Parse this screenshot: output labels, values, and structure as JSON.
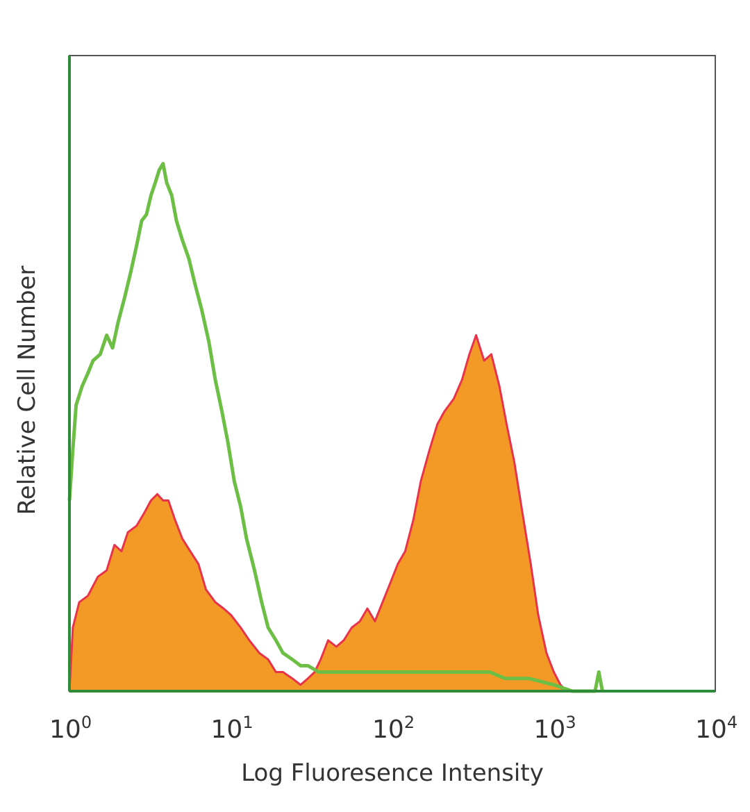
{
  "chart_data": {
    "type": "area",
    "title": "",
    "xlabel": "Log Fluoresence Intensity",
    "ylabel": "Relative Cell Number",
    "x_scale": "log",
    "xlim": [
      1,
      10000
    ],
    "ylim": [
      0,
      100
    ],
    "x_ticks": [
      {
        "base": "10",
        "exp": "0",
        "value": 1
      },
      {
        "base": "10",
        "exp": "1",
        "value": 10
      },
      {
        "base": "10",
        "exp": "2",
        "value": 100
      },
      {
        "base": "10",
        "exp": "3",
        "value": 1000
      },
      {
        "base": "10",
        "exp": "4",
        "value": 10000
      }
    ],
    "grid": false,
    "legend": "none",
    "series": [
      {
        "style": "filled",
        "color": "#f39a26",
        "edge_color": "#e8334a",
        "points": [
          [
            1.0,
            0
          ],
          [
            1.05,
            10
          ],
          [
            1.15,
            14
          ],
          [
            1.3,
            15
          ],
          [
            1.5,
            18
          ],
          [
            1.7,
            19
          ],
          [
            1.9,
            23
          ],
          [
            2.1,
            22
          ],
          [
            2.3,
            25
          ],
          [
            2.6,
            26
          ],
          [
            2.9,
            28
          ],
          [
            3.2,
            30
          ],
          [
            3.5,
            31
          ],
          [
            3.8,
            30
          ],
          [
            4.1,
            30
          ],
          [
            4.5,
            27
          ],
          [
            5.0,
            24
          ],
          [
            5.6,
            22
          ],
          [
            6.3,
            20
          ],
          [
            7.0,
            16
          ],
          [
            8.0,
            14
          ],
          [
            9.0,
            13
          ],
          [
            10.0,
            12
          ],
          [
            11.5,
            10
          ],
          [
            13.0,
            8
          ],
          [
            15.0,
            6
          ],
          [
            17.0,
            5
          ],
          [
            19.0,
            3
          ],
          [
            21.0,
            3
          ],
          [
            24.0,
            2
          ],
          [
            27.0,
            1
          ],
          [
            30.0,
            2
          ],
          [
            33.0,
            3
          ],
          [
            36.0,
            5
          ],
          [
            40.0,
            8
          ],
          [
            45.0,
            7
          ],
          [
            50.0,
            8
          ],
          [
            56.0,
            10
          ],
          [
            63.0,
            11
          ],
          [
            70.0,
            13
          ],
          [
            78.0,
            11
          ],
          [
            87.0,
            14
          ],
          [
            97.0,
            17
          ],
          [
            108.0,
            20
          ],
          [
            120.0,
            22
          ],
          [
            135.0,
            27
          ],
          [
            150.0,
            33
          ],
          [
            170.0,
            38
          ],
          [
            190.0,
            42
          ],
          [
            210.0,
            44
          ],
          [
            240.0,
            46
          ],
          [
            270.0,
            49
          ],
          [
            300.0,
            53
          ],
          [
            330.0,
            56
          ],
          [
            370.0,
            52
          ],
          [
            410.0,
            53
          ],
          [
            460.0,
            48
          ],
          [
            510.0,
            42
          ],
          [
            570.0,
            36
          ],
          [
            640.0,
            28
          ],
          [
            720.0,
            20
          ],
          [
            800.0,
            12
          ],
          [
            900.0,
            6
          ],
          [
            1000.0,
            3
          ],
          [
            1100.0,
            1
          ],
          [
            1200.0,
            0
          ]
        ]
      },
      {
        "style": "line",
        "color": "#6cbe45",
        "points": [
          [
            1.0,
            30
          ],
          [
            1.05,
            38
          ],
          [
            1.1,
            45
          ],
          [
            1.2,
            48
          ],
          [
            1.3,
            50
          ],
          [
            1.4,
            52
          ],
          [
            1.55,
            53
          ],
          [
            1.7,
            56
          ],
          [
            1.85,
            54
          ],
          [
            2.0,
            58
          ],
          [
            2.2,
            62
          ],
          [
            2.4,
            66
          ],
          [
            2.6,
            70
          ],
          [
            2.8,
            74
          ],
          [
            3.0,
            75
          ],
          [
            3.2,
            78
          ],
          [
            3.4,
            80
          ],
          [
            3.6,
            82
          ],
          [
            3.8,
            83
          ],
          [
            4.0,
            80
          ],
          [
            4.3,
            78
          ],
          [
            4.6,
            74
          ],
          [
            5.0,
            71
          ],
          [
            5.5,
            68
          ],
          [
            6.0,
            64
          ],
          [
            6.6,
            60
          ],
          [
            7.3,
            55
          ],
          [
            8.0,
            49
          ],
          [
            8.8,
            44
          ],
          [
            9.6,
            39
          ],
          [
            10.5,
            33
          ],
          [
            11.5,
            29
          ],
          [
            12.5,
            24
          ],
          [
            14.0,
            19
          ],
          [
            15.5,
            14
          ],
          [
            17.0,
            10
          ],
          [
            19.0,
            8
          ],
          [
            21.0,
            6
          ],
          [
            24.0,
            5
          ],
          [
            27.0,
            4
          ],
          [
            30.0,
            4
          ],
          [
            35.0,
            3
          ],
          [
            45.0,
            3
          ],
          [
            60.0,
            3
          ],
          [
            80.0,
            3
          ],
          [
            100.0,
            3
          ],
          [
            150.0,
            3
          ],
          [
            200.0,
            3
          ],
          [
            300.0,
            3
          ],
          [
            400.0,
            3
          ],
          [
            500.0,
            2
          ],
          [
            700.0,
            2
          ],
          [
            1000.0,
            1
          ],
          [
            1300.0,
            0
          ],
          [
            1800.0,
            0
          ],
          [
            1900.0,
            3
          ],
          [
            2000.0,
            0
          ]
        ]
      }
    ]
  }
}
